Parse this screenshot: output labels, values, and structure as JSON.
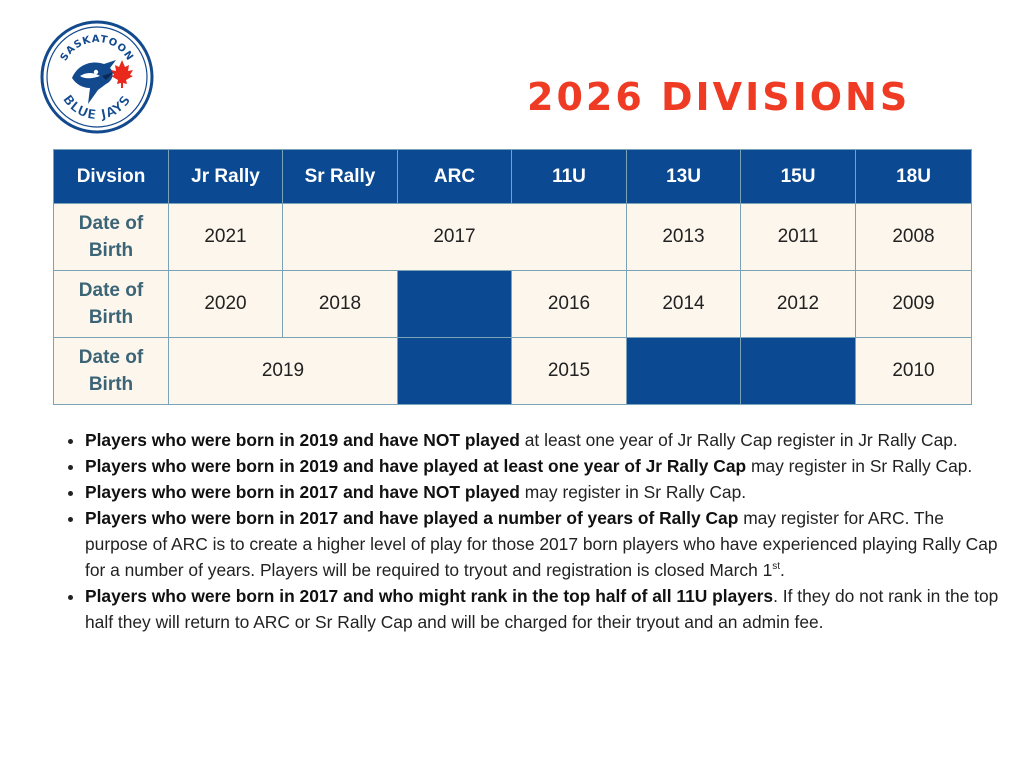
{
  "logo": {
    "top_text": "SASKATOON",
    "bottom_text": "BLUE JAYS",
    "colors": {
      "blue": "#134a8e",
      "red": "#e8291c"
    }
  },
  "title": "2026 DIVISIONS",
  "table": {
    "headers": [
      "Divsion",
      "Jr Rally",
      "Sr Rally",
      "ARC",
      "11U",
      "13U",
      "15U",
      "18U"
    ],
    "row_label": "Date of Birth",
    "row1": {
      "jr_rally": "2021",
      "sr_rally_arc_11u": "2017",
      "u13": "2013",
      "u15": "2011",
      "u18": "2008"
    },
    "row2": {
      "jr_rally": "2020",
      "sr_rally": "2018",
      "u11": "2016",
      "u13": "2014",
      "u15": "2012",
      "u18": "2009"
    },
    "row3": {
      "jr_sr_rally": "2019",
      "u11": "2015",
      "u18": "2010"
    }
  },
  "notes": [
    {
      "bold": "Players who were born in 2019 and have NOT played",
      "text": " at least one year of Jr Rally Cap register in Jr Rally Cap."
    },
    {
      "bold": "Players who were born in 2019 and have played at least one year of Jr Rally Cap",
      "text": " may register in Sr Rally Cap."
    },
    {
      "bold": "Players who were born in 2017 and have NOT played",
      "text": " may register in Sr Rally Cap."
    },
    {
      "bold": "Players who were born in 2017 and have played a number of years of Rally Cap",
      "text": " may register for ARC. The purpose of ARC is to create a higher level of play for those 2017 born players who have experienced playing Rally Cap for a number of years. Players will be required to tryout and registration is closed March 1",
      "sup": "st",
      "tail": "."
    },
    {
      "bold": "Players who were born in 2017 and who might rank in the top half of all 11U players",
      "text": ". If they do not rank in the top half they will return to ARC or Sr Rally Cap and will be charged for their tryout and an admin fee."
    }
  ]
}
